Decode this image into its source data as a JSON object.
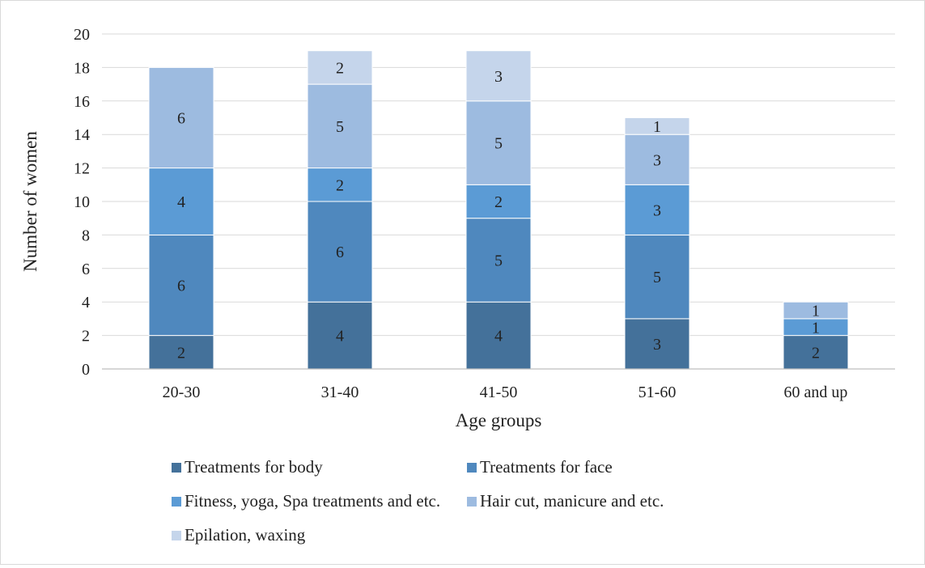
{
  "chart_data": {
    "type": "bar",
    "stacked": true,
    "title": "",
    "xlabel": "Age groups",
    "ylabel": "Number of women",
    "categories": [
      "20-30",
      "31-40",
      "41-50",
      "51-60",
      "60 and up"
    ],
    "ylim": [
      0,
      20
    ],
    "yticks": [
      "0",
      "2",
      "4",
      "6",
      "8",
      "10",
      "12",
      "14",
      "16",
      "18",
      "20"
    ],
    "grid": true,
    "legend_position": "bottom",
    "series": [
      {
        "name": "Treatments for body",
        "values": [
          2,
          4,
          4,
          3,
          2
        ],
        "color": "#44719a"
      },
      {
        "name": "Treatments for face",
        "values": [
          6,
          6,
          5,
          5,
          0
        ],
        "color": "#4f88be"
      },
      {
        "name": "Fitness, yoga, Spa treatments and etc.",
        "values": [
          4,
          2,
          2,
          3,
          1
        ],
        "color": "#5b9bd5"
      },
      {
        "name": "Hair cut, manicure and etc.",
        "values": [
          6,
          5,
          5,
          3,
          1
        ],
        "color": "#9dbbe0"
      },
      {
        "name": "Epilation, waxing",
        "values": [
          0,
          2,
          3,
          1,
          0
        ],
        "color": "#c5d5eb"
      }
    ]
  }
}
